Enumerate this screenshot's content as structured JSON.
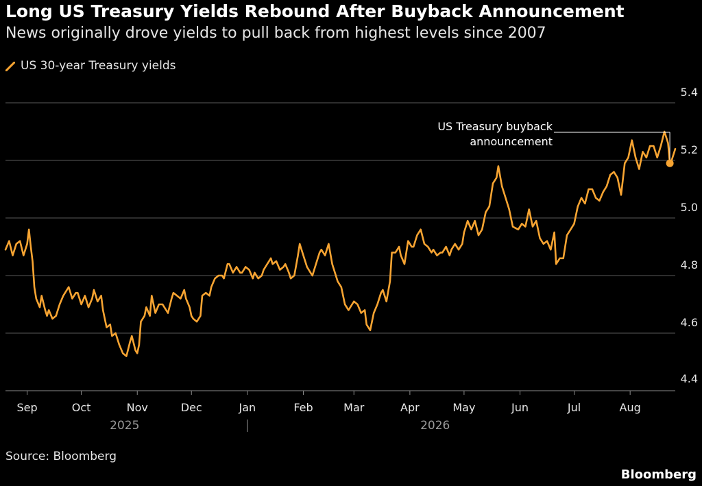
{
  "chart_data": {
    "type": "line",
    "title": "Long US Treasury Yields Rebound After Buyback Announcement",
    "subtitle": "News originally drove yields to pull back from highest levels since 2007",
    "source": "Source: Bloomberg",
    "brand": "Bloomberg",
    "line_color": "#f7a432",
    "ylim": [
      4.4,
      5.4
    ],
    "y_ticks": [
      "5.4",
      "5.2",
      "5.0",
      "4.8",
      "4.6",
      "4.4"
    ],
    "y_tick_values": [
      5.4,
      5.2,
      5.0,
      4.8,
      4.6,
      4.4
    ],
    "grid": "horizontal",
    "x_range": [
      "2025-08-20",
      "2026-08-26"
    ],
    "x_ticks": [
      {
        "label": "Sep",
        "date": "2025-09-01"
      },
      {
        "label": "Oct",
        "date": "2025-10-01"
      },
      {
        "label": "Nov",
        "date": "2025-11-01"
      },
      {
        "label": "Dec",
        "date": "2025-12-01"
      },
      {
        "label": "Jan",
        "date": "2026-01-01"
      },
      {
        "label": "Feb",
        "date": "2026-02-01"
      },
      {
        "label": "Mar",
        "date": "2026-03-01"
      },
      {
        "label": "Apr",
        "date": "2026-04-01"
      },
      {
        "label": "May",
        "date": "2026-05-01"
      },
      {
        "label": "Jun",
        "date": "2026-06-01"
      },
      {
        "label": "Jul",
        "date": "2026-07-01"
      },
      {
        "label": "Aug",
        "date": "2026-08-01"
      }
    ],
    "year_labels": [
      {
        "label": "2025",
        "date": "2025-10-25"
      },
      {
        "label": "2026",
        "date": "2026-04-15"
      }
    ],
    "year_divider_date": "2026-01-01",
    "annotation": {
      "lines": [
        "US Treasury buyback",
        "announcement"
      ],
      "date": "2026-08-23"
    },
    "series": [
      {
        "name": "US 30-year Treasury yields",
        "points": [
          [
            "2025-08-20",
            4.89
          ],
          [
            "2025-08-22",
            4.92
          ],
          [
            "2025-08-24",
            4.87
          ],
          [
            "2025-08-26",
            4.91
          ],
          [
            "2025-08-28",
            4.92
          ],
          [
            "2025-08-30",
            4.87
          ],
          [
            "2025-09-01",
            4.91
          ],
          [
            "2025-09-02",
            4.96
          ],
          [
            "2025-09-03",
            4.9
          ],
          [
            "2025-09-04",
            4.85
          ],
          [
            "2025-09-05",
            4.76
          ],
          [
            "2025-09-06",
            4.72
          ],
          [
            "2025-09-08",
            4.69
          ],
          [
            "2025-09-09",
            4.73
          ],
          [
            "2025-09-11",
            4.68
          ],
          [
            "2025-09-12",
            4.66
          ],
          [
            "2025-09-13",
            4.68
          ],
          [
            "2025-09-15",
            4.65
          ],
          [
            "2025-09-17",
            4.66
          ],
          [
            "2025-09-19",
            4.7
          ],
          [
            "2025-09-21",
            4.73
          ],
          [
            "2025-09-23",
            4.75
          ],
          [
            "2025-09-24",
            4.76
          ],
          [
            "2025-09-26",
            4.72
          ],
          [
            "2025-09-28",
            4.74
          ],
          [
            "2025-09-29",
            4.74
          ],
          [
            "2025-10-01",
            4.7
          ],
          [
            "2025-10-03",
            4.73
          ],
          [
            "2025-10-05",
            4.69
          ],
          [
            "2025-10-07",
            4.72
          ],
          [
            "2025-10-08",
            4.75
          ],
          [
            "2025-10-10",
            4.71
          ],
          [
            "2025-10-12",
            4.73
          ],
          [
            "2025-10-13",
            4.68
          ],
          [
            "2025-10-15",
            4.62
          ],
          [
            "2025-10-17",
            4.63
          ],
          [
            "2025-10-18",
            4.59
          ],
          [
            "2025-10-20",
            4.6
          ],
          [
            "2025-10-22",
            4.56
          ],
          [
            "2025-10-24",
            4.53
          ],
          [
            "2025-10-26",
            4.52
          ],
          [
            "2025-10-28",
            4.57
          ],
          [
            "2025-10-29",
            4.59
          ],
          [
            "2025-10-31",
            4.54
          ],
          [
            "2025-11-01",
            4.53
          ],
          [
            "2025-11-02",
            4.56
          ],
          [
            "2025-11-03",
            4.64
          ],
          [
            "2025-11-05",
            4.66
          ],
          [
            "2025-11-06",
            4.69
          ],
          [
            "2025-11-08",
            4.66
          ],
          [
            "2025-11-09",
            4.73
          ],
          [
            "2025-11-11",
            4.67
          ],
          [
            "2025-11-13",
            4.7
          ],
          [
            "2025-11-15",
            4.7
          ],
          [
            "2025-11-16",
            4.69
          ],
          [
            "2025-11-18",
            4.67
          ],
          [
            "2025-11-20",
            4.72
          ],
          [
            "2025-11-21",
            4.74
          ],
          [
            "2025-11-23",
            4.73
          ],
          [
            "2025-11-25",
            4.72
          ],
          [
            "2025-11-27",
            4.75
          ],
          [
            "2025-11-28",
            4.72
          ],
          [
            "2025-11-30",
            4.69
          ],
          [
            "2025-12-01",
            4.66
          ],
          [
            "2025-12-02",
            4.65
          ],
          [
            "2025-12-04",
            4.64
          ],
          [
            "2025-12-06",
            4.66
          ],
          [
            "2025-12-07",
            4.73
          ],
          [
            "2025-12-09",
            4.74
          ],
          [
            "2025-12-11",
            4.73
          ],
          [
            "2025-12-12",
            4.76
          ],
          [
            "2025-12-14",
            4.79
          ],
          [
            "2025-12-16",
            4.8
          ],
          [
            "2025-12-18",
            4.8
          ],
          [
            "2025-12-19",
            4.79
          ],
          [
            "2025-12-21",
            4.84
          ],
          [
            "2025-12-22",
            4.84
          ],
          [
            "2025-12-24",
            4.81
          ],
          [
            "2025-12-26",
            4.83
          ],
          [
            "2025-12-28",
            4.81
          ],
          [
            "2025-12-29",
            4.81
          ],
          [
            "2025-12-31",
            4.83
          ],
          [
            "2026-01-02",
            4.82
          ],
          [
            "2026-01-04",
            4.79
          ],
          [
            "2026-01-05",
            4.81
          ],
          [
            "2026-01-07",
            4.79
          ],
          [
            "2026-01-09",
            4.8
          ],
          [
            "2026-01-10",
            4.82
          ],
          [
            "2026-01-12",
            4.84
          ],
          [
            "2026-01-14",
            4.86
          ],
          [
            "2026-01-15",
            4.84
          ],
          [
            "2026-01-17",
            4.85
          ],
          [
            "2026-01-19",
            4.82
          ],
          [
            "2026-01-21",
            4.83
          ],
          [
            "2026-01-22",
            4.84
          ],
          [
            "2026-01-24",
            4.81
          ],
          [
            "2026-01-25",
            4.79
          ],
          [
            "2026-01-27",
            4.8
          ],
          [
            "2026-01-29",
            4.87
          ],
          [
            "2026-01-30",
            4.91
          ],
          [
            "2026-02-01",
            4.87
          ],
          [
            "2026-02-03",
            4.83
          ],
          [
            "2026-02-05",
            4.81
          ],
          [
            "2026-02-06",
            4.8
          ],
          [
            "2026-02-08",
            4.84
          ],
          [
            "2026-02-10",
            4.88
          ],
          [
            "2026-02-11",
            4.89
          ],
          [
            "2026-02-13",
            4.87
          ],
          [
            "2026-02-15",
            4.91
          ],
          [
            "2026-02-17",
            4.84
          ],
          [
            "2026-02-19",
            4.8
          ],
          [
            "2026-02-20",
            4.78
          ],
          [
            "2026-02-22",
            4.76
          ],
          [
            "2026-02-24",
            4.7
          ],
          [
            "2026-02-26",
            4.68
          ],
          [
            "2026-02-28",
            4.7
          ],
          [
            "2026-03-01",
            4.71
          ],
          [
            "2026-03-03",
            4.7
          ],
          [
            "2026-03-05",
            4.67
          ],
          [
            "2026-03-07",
            4.68
          ],
          [
            "2026-03-08",
            4.63
          ],
          [
            "2026-03-10",
            4.61
          ],
          [
            "2026-03-12",
            4.67
          ],
          [
            "2026-03-14",
            4.7
          ],
          [
            "2026-03-16",
            4.74
          ],
          [
            "2026-03-17",
            4.75
          ],
          [
            "2026-03-19",
            4.71
          ],
          [
            "2026-03-21",
            4.78
          ],
          [
            "2026-03-22",
            4.88
          ],
          [
            "2026-03-24",
            4.88
          ],
          [
            "2026-03-26",
            4.9
          ],
          [
            "2026-03-27",
            4.87
          ],
          [
            "2026-03-29",
            4.84
          ],
          [
            "2026-03-31",
            4.92
          ],
          [
            "2026-04-02",
            4.9
          ],
          [
            "2026-04-03",
            4.9
          ],
          [
            "2026-04-05",
            4.94
          ],
          [
            "2026-04-07",
            4.96
          ],
          [
            "2026-04-09",
            4.91
          ],
          [
            "2026-04-11",
            4.9
          ],
          [
            "2026-04-13",
            4.88
          ],
          [
            "2026-04-14",
            4.89
          ],
          [
            "2026-04-16",
            4.87
          ],
          [
            "2026-04-18",
            4.88
          ],
          [
            "2026-04-19",
            4.88
          ],
          [
            "2026-04-21",
            4.9
          ],
          [
            "2026-04-23",
            4.87
          ],
          [
            "2026-04-24",
            4.89
          ],
          [
            "2026-04-26",
            4.91
          ],
          [
            "2026-04-28",
            4.89
          ],
          [
            "2026-04-30",
            4.91
          ],
          [
            "2026-05-01",
            4.95
          ],
          [
            "2026-05-03",
            4.99
          ],
          [
            "2026-05-05",
            4.96
          ],
          [
            "2026-05-07",
            4.99
          ],
          [
            "2026-05-09",
            4.94
          ],
          [
            "2026-05-11",
            4.96
          ],
          [
            "2026-05-13",
            5.02
          ],
          [
            "2026-05-15",
            5.04
          ],
          [
            "2026-05-17",
            5.12
          ],
          [
            "2026-05-19",
            5.14
          ],
          [
            "2026-05-20",
            5.18
          ],
          [
            "2026-05-22",
            5.11
          ],
          [
            "2026-05-24",
            5.07
          ],
          [
            "2026-05-26",
            5.03
          ],
          [
            "2026-05-28",
            4.97
          ],
          [
            "2026-05-31",
            4.96
          ],
          [
            "2026-06-02",
            4.98
          ],
          [
            "2026-06-04",
            4.97
          ],
          [
            "2026-06-06",
            5.03
          ],
          [
            "2026-06-08",
            4.97
          ],
          [
            "2026-06-10",
            4.99
          ],
          [
            "2026-06-12",
            4.93
          ],
          [
            "2026-06-14",
            4.91
          ],
          [
            "2026-06-16",
            4.92
          ],
          [
            "2026-06-18",
            4.89
          ],
          [
            "2026-06-20",
            4.95
          ],
          [
            "2026-06-21",
            4.84
          ],
          [
            "2026-06-23",
            4.86
          ],
          [
            "2026-06-25",
            4.86
          ],
          [
            "2026-06-27",
            4.94
          ],
          [
            "2026-06-29",
            4.96
          ],
          [
            "2026-07-01",
            4.98
          ],
          [
            "2026-07-03",
            5.04
          ],
          [
            "2026-07-05",
            5.07
          ],
          [
            "2026-07-07",
            5.05
          ],
          [
            "2026-07-09",
            5.1
          ],
          [
            "2026-07-11",
            5.1
          ],
          [
            "2026-07-13",
            5.07
          ],
          [
            "2026-07-15",
            5.06
          ],
          [
            "2026-07-17",
            5.09
          ],
          [
            "2026-07-19",
            5.11
          ],
          [
            "2026-07-21",
            5.15
          ],
          [
            "2026-07-23",
            5.16
          ],
          [
            "2026-07-25",
            5.14
          ],
          [
            "2026-07-27",
            5.08
          ],
          [
            "2026-07-29",
            5.19
          ],
          [
            "2026-07-31",
            5.21
          ],
          [
            "2026-08-02",
            5.27
          ],
          [
            "2026-08-04",
            5.21
          ],
          [
            "2026-08-06",
            5.17
          ],
          [
            "2026-08-08",
            5.23
          ],
          [
            "2026-08-10",
            5.21
          ],
          [
            "2026-08-12",
            5.25
          ],
          [
            "2026-08-14",
            5.25
          ],
          [
            "2026-08-16",
            5.21
          ],
          [
            "2026-08-18",
            5.25
          ],
          [
            "2026-08-20",
            5.3
          ],
          [
            "2026-08-22",
            5.26
          ],
          [
            "2026-08-23",
            5.19
          ],
          [
            "2026-08-24",
            5.2
          ],
          [
            "2026-08-26",
            5.24
          ]
        ]
      }
    ]
  }
}
